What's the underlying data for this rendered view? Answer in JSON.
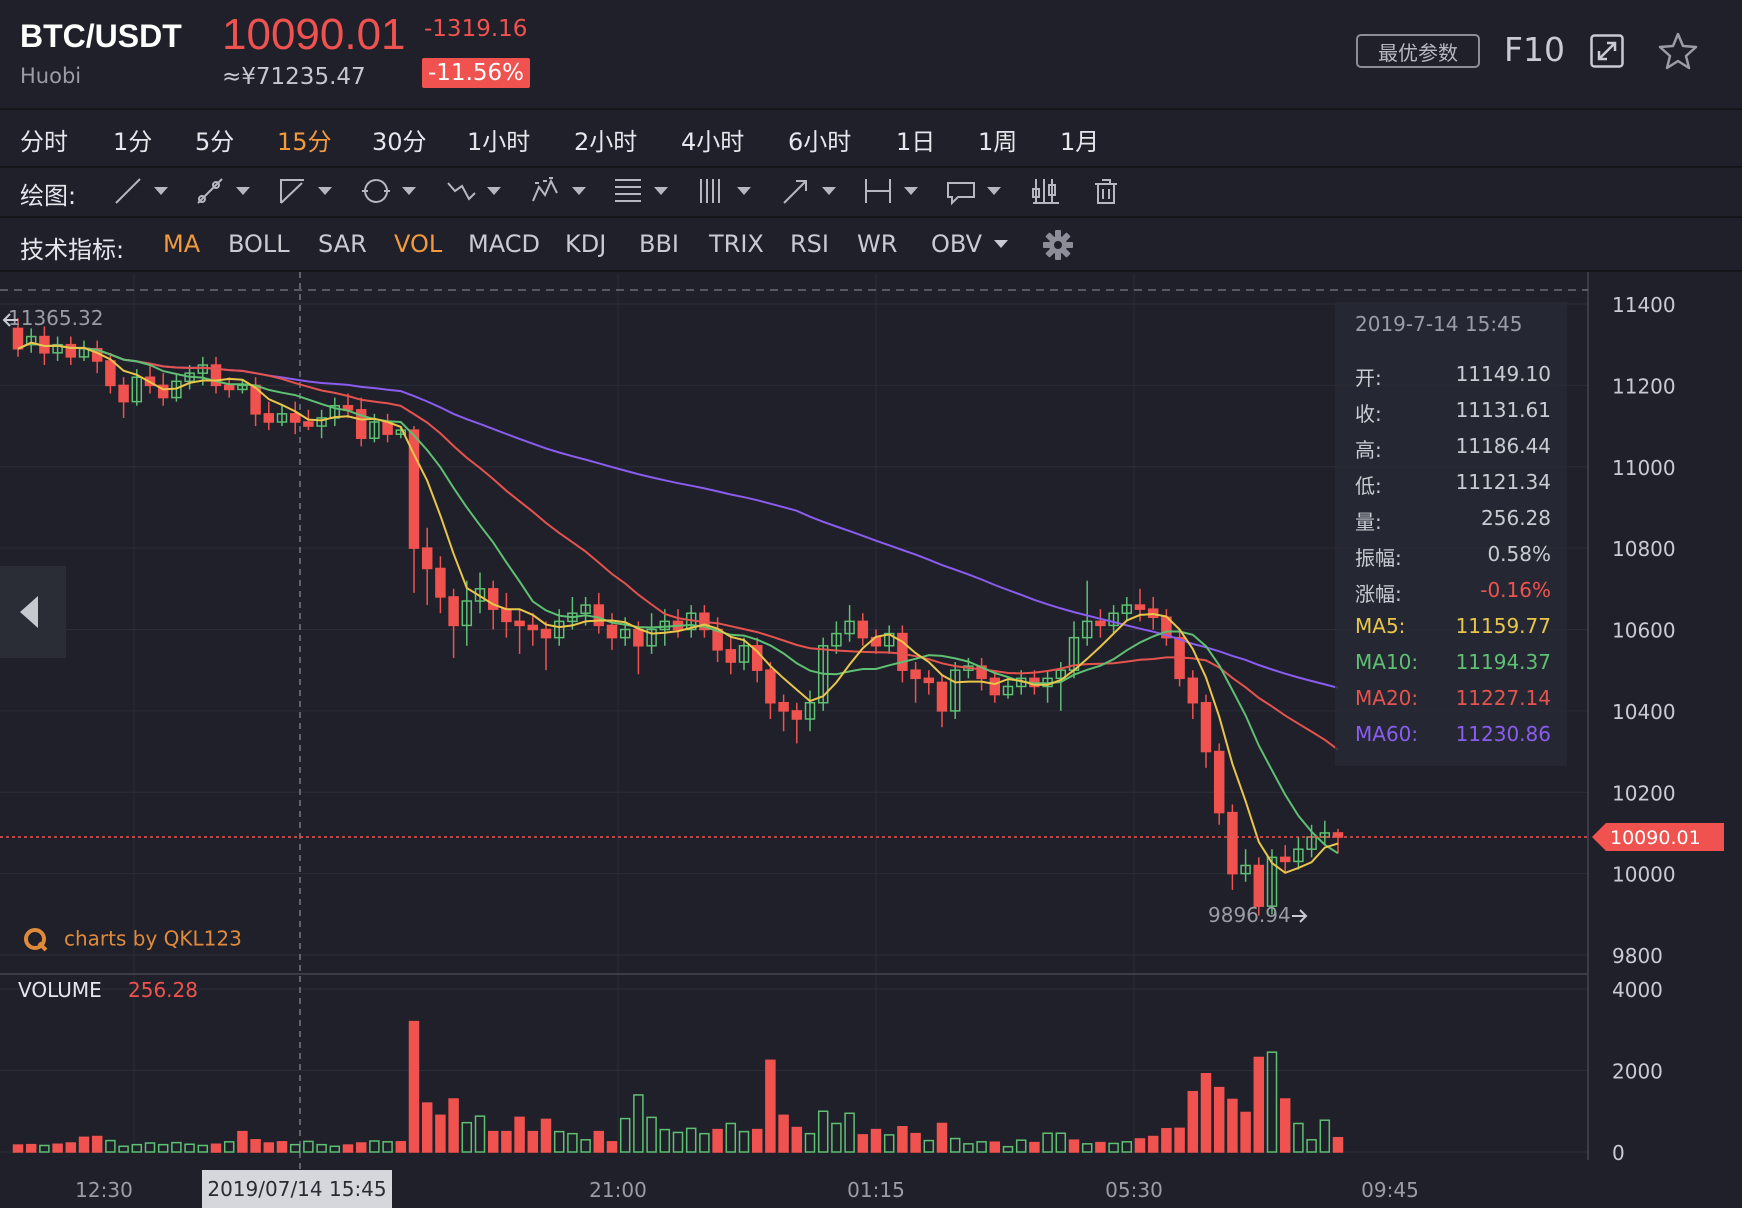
{
  "header": {
    "pair": "BTC/USDT",
    "exchange": "Huobi",
    "price": "10090.01",
    "price_cny": "≈¥71235.47",
    "change": "-1319.16",
    "change_pct": "-11.56%",
    "best_params_label": "最优参数",
    "f10_label": "F10"
  },
  "periods": [
    {
      "label": "分时",
      "active": false
    },
    {
      "label": "1分",
      "active": false
    },
    {
      "label": "5分",
      "active": false
    },
    {
      "label": "15分",
      "active": true
    },
    {
      "label": "30分",
      "active": false
    },
    {
      "label": "1小时",
      "active": false
    },
    {
      "label": "2小时",
      "active": false
    },
    {
      "label": "4小时",
      "active": false
    },
    {
      "label": "6小时",
      "active": false
    },
    {
      "label": "1日",
      "active": false
    },
    {
      "label": "1周",
      "active": false
    },
    {
      "label": "1月",
      "active": false
    }
  ],
  "drawing": {
    "label": "绘图:",
    "tools": [
      "line-tool-icon",
      "ray-tool-icon",
      "channel-tool-icon",
      "circle-tool-icon",
      "wave-tool-icon",
      "pattern-tool-icon",
      "fib-tool-icon",
      "grid-tool-icon",
      "arrow-tool-icon",
      "range-tool-icon",
      "text-tool-icon",
      "candle-tool-icon",
      "trash-icon"
    ]
  },
  "indicators": {
    "label": "技术指标:",
    "items": [
      {
        "label": "MA",
        "active": true
      },
      {
        "label": "BOLL",
        "active": false
      },
      {
        "label": "SAR",
        "active": false
      },
      {
        "label": "VOL",
        "active": true
      },
      {
        "label": "MACD",
        "active": false
      },
      {
        "label": "KDJ",
        "active": false
      },
      {
        "label": "BBI",
        "active": false
      },
      {
        "label": "TRIX",
        "active": false
      },
      {
        "label": "RSI",
        "active": false
      },
      {
        "label": "WR",
        "active": false
      },
      {
        "label": "OBV",
        "active": false
      }
    ]
  },
  "tooltip": {
    "date": "2019-7-14 15:45",
    "rows": [
      {
        "k": "开:",
        "v": "11149.10",
        "color": "#c9cbd2"
      },
      {
        "k": "收:",
        "v": "11131.61",
        "color": "#c9cbd2"
      },
      {
        "k": "高:",
        "v": "11186.44",
        "color": "#c9cbd2"
      },
      {
        "k": "低:",
        "v": "11121.34",
        "color": "#c9cbd2"
      },
      {
        "k": "量:",
        "v": "256.28",
        "color": "#c9cbd2"
      },
      {
        "k": "振幅:",
        "v": "0.58%",
        "color": "#c9cbd2"
      },
      {
        "k": "涨幅:",
        "v": "-0.16%",
        "color": "#f0524f"
      },
      {
        "k": "MA5:",
        "v": "11159.77",
        "color": "#e9c64b"
      },
      {
        "k": "MA10:",
        "v": "11194.37",
        "color": "#5fbf73"
      },
      {
        "k": "MA20:",
        "v": "11227.14",
        "color": "#e5534f"
      },
      {
        "k": "MA60:",
        "v": "11230.86",
        "color": "#8a5cf0"
      }
    ]
  },
  "watermark": "charts by QKL123",
  "volume": {
    "label": "VOLUME",
    "value": "256.28"
  },
  "crosshair_time": "2019/07/14 15:45",
  "colors": {
    "up": "#5fbf73",
    "down": "#f0524f",
    "ma5": "#e9c64b",
    "ma10": "#5fbf73",
    "ma20": "#e5534f",
    "ma60": "#8a5cf0",
    "accent": "#f19a3e"
  },
  "chart_data": {
    "type": "candlestick",
    "title": "BTC/USDT",
    "ylim": [
      9800,
      11400
    ],
    "yticks": [
      11400,
      11200,
      11000,
      10800,
      10600,
      10400,
      10200,
      10000,
      9800
    ],
    "vol_ylim": [
      0,
      4000
    ],
    "vol_yticks": [
      4000,
      2000,
      0
    ],
    "xticks": [
      "12:30",
      "21:00",
      "01:15",
      "05:30",
      "09:45"
    ],
    "high_marker": "11365.32",
    "low_marker": "9896.94",
    "last_price": "10090.01",
    "candles": [
      [
        11340,
        11290,
        11365,
        11270
      ],
      [
        11300,
        11320,
        11340,
        11280
      ],
      [
        11320,
        11280,
        11345,
        11250
      ],
      [
        11280,
        11300,
        11320,
        11260
      ],
      [
        11300,
        11270,
        11320,
        11250
      ],
      [
        11270,
        11290,
        11310,
        11260
      ],
      [
        11290,
        11260,
        11310,
        11230
      ],
      [
        11260,
        11200,
        11280,
        11180
      ],
      [
        11200,
        11160,
        11220,
        11120
      ],
      [
        11160,
        11220,
        11240,
        11150
      ],
      [
        11220,
        11200,
        11250,
        11180
      ],
      [
        11200,
        11170,
        11230,
        11150
      ],
      [
        11170,
        11210,
        11230,
        11160
      ],
      [
        11210,
        11230,
        11250,
        11190
      ],
      [
        11230,
        11250,
        11270,
        11200
      ],
      [
        11250,
        11200,
        11270,
        11180
      ],
      [
        11200,
        11190,
        11220,
        11170
      ],
      [
        11190,
        11200,
        11215,
        11180
      ],
      [
        11200,
        11130,
        11220,
        11100
      ],
      [
        11130,
        11110,
        11160,
        11090
      ],
      [
        11110,
        11130,
        11150,
        11100
      ],
      [
        11130,
        11110,
        11160,
        11080
      ],
      [
        11110,
        11100,
        11140,
        11090
      ],
      [
        11100,
        11120,
        11140,
        11070
      ],
      [
        11120,
        11150,
        11170,
        11100
      ],
      [
        11150,
        11140,
        11180,
        11120
      ],
      [
        11140,
        11070,
        11170,
        11050
      ],
      [
        11070,
        11110,
        11130,
        11060
      ],
      [
        11110,
        11080,
        11130,
        11060
      ],
      [
        11080,
        11090,
        11100,
        11070
      ],
      [
        11090,
        10800,
        11100,
        10690
      ],
      [
        10800,
        10750,
        10850,
        10660
      ],
      [
        10750,
        10680,
        10780,
        10640
      ],
      [
        10680,
        10610,
        10700,
        10530
      ],
      [
        10610,
        10670,
        10720,
        10560
      ],
      [
        10670,
        10700,
        10740,
        10640
      ],
      [
        10700,
        10650,
        10720,
        10600
      ],
      [
        10650,
        10620,
        10690,
        10580
      ],
      [
        10620,
        10610,
        10650,
        10540
      ],
      [
        10610,
        10600,
        10640,
        10560
      ],
      [
        10600,
        10580,
        10620,
        10500
      ],
      [
        10580,
        10620,
        10650,
        10560
      ],
      [
        10620,
        10640,
        10680,
        10600
      ],
      [
        10640,
        10660,
        10680,
        10610
      ],
      [
        10660,
        10610,
        10690,
        10590
      ],
      [
        10610,
        10580,
        10640,
        10550
      ],
      [
        10580,
        10600,
        10630,
        10560
      ],
      [
        10600,
        10560,
        10620,
        10490
      ],
      [
        10560,
        10600,
        10640,
        10540
      ],
      [
        10600,
        10620,
        10650,
        10560
      ],
      [
        10620,
        10600,
        10650,
        10580
      ],
      [
        10600,
        10640,
        10660,
        10580
      ],
      [
        10640,
        10600,
        10660,
        10580
      ],
      [
        10600,
        10550,
        10630,
        10520
      ],
      [
        10550,
        10520,
        10580,
        10490
      ],
      [
        10520,
        10560,
        10580,
        10500
      ],
      [
        10560,
        10500,
        10580,
        10470
      ],
      [
        10500,
        10420,
        10520,
        10380
      ],
      [
        10420,
        10400,
        10440,
        10350
      ],
      [
        10400,
        10380,
        10420,
        10320
      ],
      [
        10380,
        10420,
        10450,
        10350
      ],
      [
        10420,
        10560,
        10580,
        10400
      ],
      [
        10560,
        10590,
        10620,
        10540
      ],
      [
        10590,
        10620,
        10660,
        10570
      ],
      [
        10620,
        10580,
        10640,
        10560
      ],
      [
        10580,
        10560,
        10600,
        10540
      ],
      [
        10560,
        10590,
        10610,
        10540
      ],
      [
        10590,
        10500,
        10610,
        10470
      ],
      [
        10500,
        10480,
        10520,
        10420
      ],
      [
        10480,
        10470,
        10500,
        10440
      ],
      [
        10470,
        10400,
        10490,
        10360
      ],
      [
        10400,
        10500,
        10520,
        10380
      ],
      [
        10500,
        10510,
        10530,
        10480
      ],
      [
        10510,
        10480,
        10530,
        10450
      ],
      [
        10480,
        10440,
        10500,
        10420
      ],
      [
        10440,
        10460,
        10480,
        10430
      ],
      [
        10460,
        10480,
        10500,
        10440
      ],
      [
        10480,
        10460,
        10500,
        10440
      ],
      [
        10460,
        10480,
        10500,
        10420
      ],
      [
        10480,
        10500,
        10520,
        10400
      ],
      [
        10500,
        10580,
        10620,
        10480
      ],
      [
        10580,
        10620,
        10720,
        10560
      ],
      [
        10620,
        10610,
        10650,
        10580
      ],
      [
        10610,
        10640,
        10660,
        10590
      ],
      [
        10640,
        10660,
        10680,
        10620
      ],
      [
        10660,
        10650,
        10700,
        10620
      ],
      [
        10650,
        10630,
        10680,
        10600
      ],
      [
        10630,
        10580,
        10650,
        10560
      ],
      [
        10580,
        10480,
        10600,
        10460
      ],
      [
        10480,
        10420,
        10500,
        10380
      ],
      [
        10420,
        10300,
        10440,
        10260
      ],
      [
        10300,
        10150,
        10320,
        10120
      ],
      [
        10150,
        10000,
        10170,
        9960
      ],
      [
        10000,
        10020,
        10060,
        9980
      ],
      [
        10020,
        9920,
        10040,
        9897
      ],
      [
        9920,
        10040,
        10060,
        9900
      ],
      [
        10040,
        10030,
        10070,
        10000
      ],
      [
        10030,
        10060,
        10090,
        10010
      ],
      [
        10060,
        10090,
        10120,
        10040
      ],
      [
        10090,
        10100,
        10130,
        10070
      ],
      [
        10100,
        10090,
        10110,
        10050
      ]
    ],
    "volumes": [
      [
        170,
        0
      ],
      [
        180,
        0
      ],
      [
        160,
        1
      ],
      [
        190,
        0
      ],
      [
        220,
        0
      ],
      [
        360,
        0
      ],
      [
        380,
        0
      ],
      [
        280,
        1
      ],
      [
        140,
        1
      ],
      [
        180,
        1
      ],
      [
        220,
        1
      ],
      [
        180,
        1
      ],
      [
        230,
        1
      ],
      [
        190,
        1
      ],
      [
        160,
        1
      ],
      [
        190,
        0
      ],
      [
        250,
        1
      ],
      [
        500,
        0
      ],
      [
        300,
        0
      ],
      [
        220,
        0
      ],
      [
        250,
        0
      ],
      [
        180,
        1
      ],
      [
        260,
        1
      ],
      [
        180,
        1
      ],
      [
        140,
        1
      ],
      [
        170,
        0
      ],
      [
        220,
        0
      ],
      [
        270,
        1
      ],
      [
        250,
        1
      ],
      [
        250,
        0
      ],
      [
        3200,
        0
      ],
      [
        1200,
        0
      ],
      [
        900,
        0
      ],
      [
        1300,
        0
      ],
      [
        720,
        1
      ],
      [
        880,
        1
      ],
      [
        500,
        0
      ],
      [
        500,
        0
      ],
      [
        850,
        0
      ],
      [
        500,
        0
      ],
      [
        800,
        0
      ],
      [
        500,
        1
      ],
      [
        450,
        1
      ],
      [
        300,
        1
      ],
      [
        500,
        0
      ],
      [
        250,
        0
      ],
      [
        820,
        1
      ],
      [
        1400,
        1
      ],
      [
        850,
        1
      ],
      [
        550,
        1
      ],
      [
        480,
        1
      ],
      [
        580,
        1
      ],
      [
        450,
        1
      ],
      [
        550,
        0
      ],
      [
        700,
        1
      ],
      [
        500,
        1
      ],
      [
        550,
        0
      ],
      [
        2250,
        0
      ],
      [
        900,
        0
      ],
      [
        600,
        0
      ],
      [
        450,
        1
      ],
      [
        1000,
        1
      ],
      [
        700,
        1
      ],
      [
        950,
        1
      ],
      [
        420,
        0
      ],
      [
        550,
        0
      ],
      [
        420,
        1
      ],
      [
        620,
        0
      ],
      [
        450,
        0
      ],
      [
        280,
        1
      ],
      [
        700,
        0
      ],
      [
        330,
        1
      ],
      [
        200,
        1
      ],
      [
        250,
        1
      ],
      [
        240,
        0
      ],
      [
        130,
        1
      ],
      [
        290,
        1
      ],
      [
        230,
        0
      ],
      [
        460,
        1
      ],
      [
        460,
        1
      ],
      [
        290,
        0
      ],
      [
        200,
        1
      ],
      [
        230,
        0
      ],
      [
        210,
        1
      ],
      [
        250,
        1
      ],
      [
        320,
        0
      ],
      [
        380,
        0
      ],
      [
        570,
        0
      ],
      [
        580,
        0
      ],
      [
        1480,
        0
      ],
      [
        1920,
        0
      ],
      [
        1580,
        0
      ],
      [
        1290,
        0
      ],
      [
        970,
        0
      ],
      [
        2320,
        0
      ],
      [
        2450,
        1
      ],
      [
        1300,
        0
      ],
      [
        700,
        1
      ],
      [
        300,
        1
      ],
      [
        780,
        1
      ],
      [
        350,
        0
      ]
    ]
  }
}
